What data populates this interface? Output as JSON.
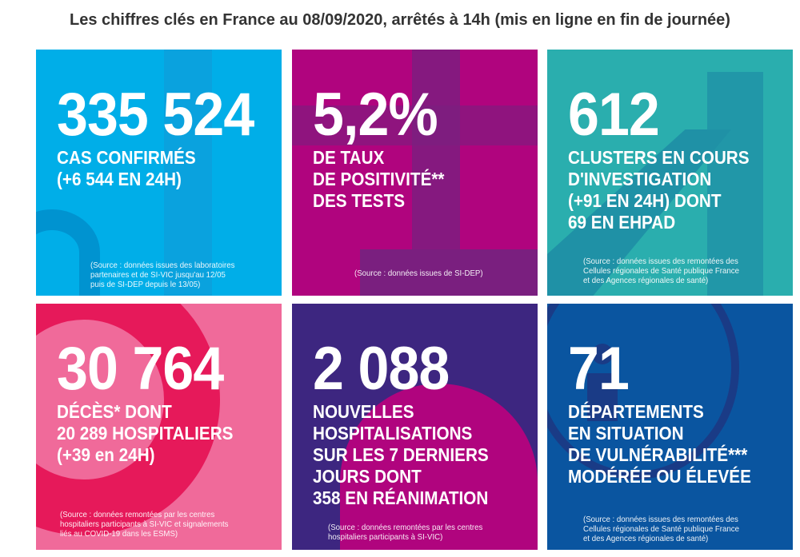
{
  "title": "Les chiffres clés en France au 08/09/2020, arrêtés à 14h (mis en ligne en fin de journée)",
  "tiles": [
    {
      "color": "#00aee8",
      "number": "335 524",
      "label": [
        "CAS CONFIRMÉS",
        "(+6 544 EN 24H)"
      ],
      "source": [
        "(Source : données issues des laboratoires",
        "partenaires et de SI-VIC jusqu'au 12/05",
        "puis de SI-DEP depuis le 13/05)"
      ]
    },
    {
      "color": "#b0047e",
      "number": "5,2%",
      "label": [
        "DE TAUX",
        "DE POSITIVITÉ**",
        "DES TESTS"
      ],
      "source": [
        "(Source : données issues de SI-DEP)"
      ]
    },
    {
      "color": "#2aaeae",
      "number": "612",
      "label": [
        "CLUSTERS EN COURS",
        "D'INVESTIGATION",
        "(+91 EN 24H) DONT",
        "69 EN EHPAD"
      ],
      "source": [
        "(Source : données issues des remontées des",
        "Cellules régionales de Santé publique France",
        "et des Agences régionales de santé)"
      ]
    },
    {
      "color": "#e6195a",
      "number": "30 764",
      "label": [
        "DÉCÈS* DONT",
        "20 289 HOSPITALIERS",
        "(+39 en 24H)"
      ],
      "source": [
        "(Source : données remontées par les centres",
        "hospitaliers participants à SI-VIC et signalements",
        "liés au COVID-19 dans les ESMS)"
      ]
    },
    {
      "color": "#3d2680",
      "number": "2 088",
      "label": [
        "NOUVELLES",
        "HOSPITALISATIONS",
        "SUR LES 7 DERNIERS",
        "JOURS DONT",
        "358 EN RÉANIMATION"
      ],
      "source": [
        "(Source : données remontées par les centres",
        "hospitaliers participants à SI-VIC)"
      ]
    },
    {
      "color": "#0a55a0",
      "number": "71",
      "label": [
        "DÉPARTEMENTS",
        "EN SITUATION",
        "DE VULNÉRABILITÉ***",
        "MODÉRÉE OU ÉLEVÉE"
      ],
      "source": [
        "(Source : données issues des remontées des",
        "Cellules régionales de Santé publique France",
        "et des Agences régionales de santé)"
      ]
    }
  ]
}
